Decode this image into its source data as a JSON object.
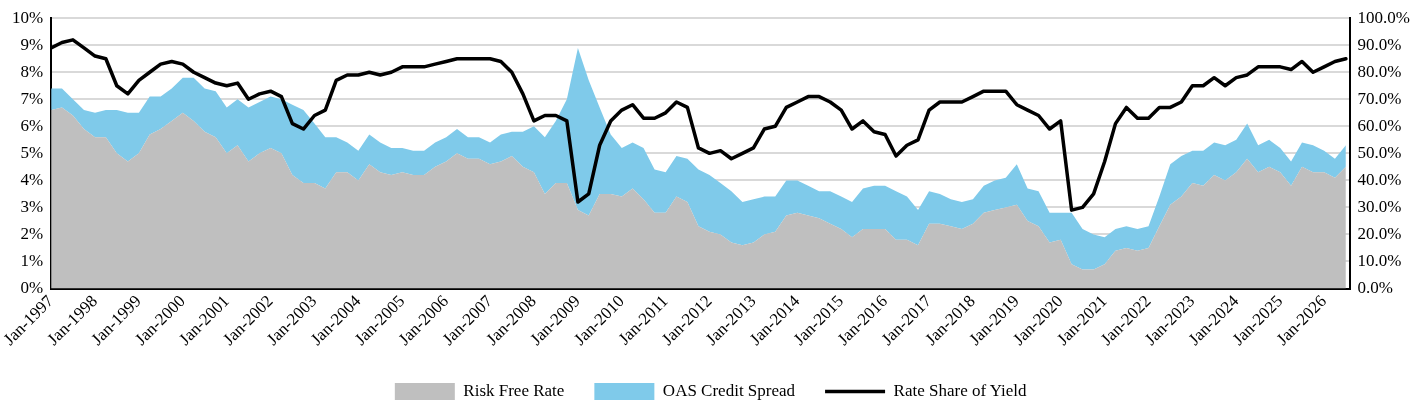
{
  "chart_data": {
    "type": "area",
    "stacked": true,
    "grid": "y",
    "legend": "bottom",
    "marker": "none",
    "x": [
      "1997-01",
      "1997-04",
      "1997-07",
      "1997-10",
      "1998-01",
      "1998-04",
      "1998-07",
      "1998-10",
      "1999-01",
      "1999-04",
      "1999-07",
      "1999-10",
      "2000-01",
      "2000-04",
      "2000-07",
      "2000-10",
      "2001-01",
      "2001-04",
      "2001-07",
      "2001-10",
      "2002-01",
      "2002-04",
      "2002-07",
      "2002-10",
      "2003-01",
      "2003-04",
      "2003-07",
      "2003-10",
      "2004-01",
      "2004-04",
      "2004-07",
      "2004-10",
      "2005-01",
      "2005-04",
      "2005-07",
      "2005-10",
      "2006-01",
      "2006-04",
      "2006-07",
      "2006-10",
      "2007-01",
      "2007-04",
      "2007-07",
      "2007-10",
      "2008-01",
      "2008-04",
      "2008-07",
      "2008-10",
      "2009-01",
      "2009-04",
      "2009-07",
      "2009-10",
      "2010-01",
      "2010-04",
      "2010-07",
      "2010-10",
      "2011-01",
      "2011-04",
      "2011-07",
      "2011-10",
      "2012-01",
      "2012-04",
      "2012-07",
      "2012-10",
      "2013-01",
      "2013-04",
      "2013-07",
      "2013-10",
      "2014-01",
      "2014-04",
      "2014-07",
      "2014-10",
      "2015-01",
      "2015-04",
      "2015-07",
      "2015-10",
      "2016-01",
      "2016-04",
      "2016-07",
      "2016-10",
      "2017-01",
      "2017-04",
      "2017-07",
      "2017-10",
      "2018-01",
      "2018-04",
      "2018-07",
      "2018-10",
      "2019-01",
      "2019-04",
      "2019-07",
      "2019-10",
      "2020-01",
      "2020-04",
      "2020-07",
      "2020-10",
      "2021-01",
      "2021-04",
      "2021-07",
      "2021-10",
      "2022-01",
      "2022-04",
      "2022-07",
      "2022-10",
      "2023-01",
      "2023-04",
      "2023-07",
      "2023-10",
      "2024-01",
      "2024-04",
      "2024-07",
      "2024-10",
      "2025-01",
      "2025-04",
      "2025-07",
      "2025-10",
      "2026-01",
      "2026-04",
      "2026-07"
    ],
    "xlim": [
      "1997-01",
      "2026-08"
    ],
    "xticks": [
      {
        "value": "1997-01",
        "label": "Jan-1997"
      },
      {
        "value": "1998-01",
        "label": "Jan-1998"
      },
      {
        "value": "1999-01",
        "label": "Jan-1999"
      },
      {
        "value": "2000-01",
        "label": "Jan-2000"
      },
      {
        "value": "2001-01",
        "label": "Jan-2001"
      },
      {
        "value": "2002-01",
        "label": "Jan-2002"
      },
      {
        "value": "2003-01",
        "label": "Jan-2003"
      },
      {
        "value": "2004-01",
        "label": "Jan-2004"
      },
      {
        "value": "2005-01",
        "label": "Jan-2005"
      },
      {
        "value": "2006-01",
        "label": "Jan-2006"
      },
      {
        "value": "2007-01",
        "label": "Jan-2007"
      },
      {
        "value": "2008-01",
        "label": "Jan-2008"
      },
      {
        "value": "2009-01",
        "label": "Jan-2009"
      },
      {
        "value": "2010-01",
        "label": "Jan-2010"
      },
      {
        "value": "2011-01",
        "label": "Jan-2011"
      },
      {
        "value": "2012-01",
        "label": "Jan-2012"
      },
      {
        "value": "2013-01",
        "label": "Jan-2013"
      },
      {
        "value": "2014-01",
        "label": "Jan-2014"
      },
      {
        "value": "2015-01",
        "label": "Jan-2015"
      },
      {
        "value": "2016-01",
        "label": "Jan-2016"
      },
      {
        "value": "2017-01",
        "label": "Jan-2017"
      },
      {
        "value": "2018-01",
        "label": "Jan-2018"
      },
      {
        "value": "2019-01",
        "label": "Jan-2019"
      },
      {
        "value": "2020-01",
        "label": "Jan-2020"
      },
      {
        "value": "2021-01",
        "label": "Jan-2021"
      },
      {
        "value": "2022-01",
        "label": "Jan-2022"
      },
      {
        "value": "2023-01",
        "label": "Jan-2023"
      },
      {
        "value": "2024-01",
        "label": "Jan-2024"
      },
      {
        "value": "2025-01",
        "label": "Jan-2025"
      },
      {
        "value": "2026-01",
        "label": "Jan-2026"
      }
    ],
    "ylim": [
      0,
      10
    ],
    "yticks": [
      {
        "value": 0,
        "label": "0%"
      },
      {
        "value": 1,
        "label": "1%"
      },
      {
        "value": 2,
        "label": "2%"
      },
      {
        "value": 3,
        "label": "3%"
      },
      {
        "value": 4,
        "label": "4%"
      },
      {
        "value": 5,
        "label": "5%"
      },
      {
        "value": 6,
        "label": "6%"
      },
      {
        "value": 7,
        "label": "7%"
      },
      {
        "value": 8,
        "label": "8%"
      },
      {
        "value": 9,
        "label": "9%"
      },
      {
        "value": 10,
        "label": "10%"
      }
    ],
    "y2lim": [
      0,
      100
    ],
    "y2ticks": [
      {
        "value": 0,
        "label": "0.0%"
      },
      {
        "value": 10,
        "label": "10.0%"
      },
      {
        "value": 20,
        "label": "20.0%"
      },
      {
        "value": 30,
        "label": "30.0%"
      },
      {
        "value": 40,
        "label": "40.0%"
      },
      {
        "value": 50,
        "label": "50.0%"
      },
      {
        "value": 60,
        "label": "60.0%"
      },
      {
        "value": 70,
        "label": "70.0%"
      },
      {
        "value": 80,
        "label": "80.0%"
      },
      {
        "value": 90,
        "label": "90.0%"
      },
      {
        "value": 100,
        "label": "100.0%"
      }
    ],
    "series": [
      {
        "name": "Risk Free Rate",
        "type": "area",
        "color": "#bfbfbf",
        "values": [
          6.6,
          6.7,
          6.4,
          5.9,
          5.6,
          5.6,
          5.0,
          4.7,
          5.0,
          5.7,
          5.9,
          6.2,
          6.5,
          6.2,
          5.8,
          5.6,
          5.0,
          5.3,
          4.7,
          5.0,
          5.2,
          5.0,
          4.2,
          3.9,
          3.9,
          3.7,
          4.3,
          4.3,
          4.0,
          4.6,
          4.3,
          4.2,
          4.3,
          4.2,
          4.2,
          4.5,
          4.7,
          5.0,
          4.8,
          4.8,
          4.6,
          4.7,
          4.9,
          4.5,
          4.3,
          3.5,
          3.9,
          3.9,
          2.9,
          2.7,
          3.5,
          3.5,
          3.4,
          3.7,
          3.3,
          2.8,
          2.8,
          3.4,
          3.2,
          2.3,
          2.1,
          2.0,
          1.7,
          1.6,
          1.7,
          2.0,
          2.1,
          2.7,
          2.8,
          2.7,
          2.6,
          2.4,
          2.2,
          1.9,
          2.2,
          2.2,
          2.2,
          1.8,
          1.8,
          1.6,
          2.4,
          2.4,
          2.3,
          2.2,
          2.4,
          2.8,
          2.9,
          3.0,
          3.1,
          2.5,
          2.3,
          1.7,
          1.8,
          0.9,
          0.7,
          0.7,
          0.9,
          1.4,
          1.5,
          1.4,
          1.5,
          2.3,
          3.1,
          3.4,
          3.9,
          3.8,
          4.2,
          4.0,
          4.3,
          4.8,
          4.3,
          4.5,
          4.3,
          3.8,
          4.5,
          4.3,
          4.3,
          4.1,
          4.5
        ]
      },
      {
        "name": "OAS Credit Spread",
        "type": "area",
        "color": "#7fcaea",
        "values": [
          0.8,
          0.7,
          0.6,
          0.7,
          0.9,
          1.0,
          1.6,
          1.8,
          1.5,
          1.4,
          1.2,
          1.2,
          1.3,
          1.6,
          1.6,
          1.7,
          1.7,
          1.7,
          2.0,
          1.9,
          1.9,
          2.0,
          2.6,
          2.7,
          2.2,
          1.9,
          1.3,
          1.1,
          1.1,
          1.1,
          1.1,
          1.0,
          0.9,
          0.9,
          0.9,
          0.9,
          0.9,
          0.9,
          0.8,
          0.8,
          0.8,
          1.0,
          0.9,
          1.3,
          1.7,
          2.1,
          2.3,
          3.1,
          6.0,
          5.0,
          3.2,
          2.2,
          1.8,
          1.7,
          1.9,
          1.6,
          1.5,
          1.5,
          1.6,
          2.1,
          2.1,
          1.9,
          1.9,
          1.6,
          1.6,
          1.4,
          1.3,
          1.3,
          1.2,
          1.1,
          1.0,
          1.2,
          1.2,
          1.3,
          1.5,
          1.6,
          1.6,
          1.8,
          1.6,
          1.3,
          1.2,
          1.1,
          1.0,
          1.0,
          0.9,
          1.0,
          1.1,
          1.1,
          1.5,
          1.2,
          1.3,
          1.1,
          1.0,
          1.9,
          1.5,
          1.3,
          1.0,
          0.8,
          0.8,
          0.8,
          0.8,
          1.1,
          1.5,
          1.5,
          1.2,
          1.3,
          1.2,
          1.3,
          1.2,
          1.3,
          1.0,
          1.0,
          0.9,
          0.9,
          0.9,
          1.0,
          0.8,
          0.7,
          0.8
        ]
      },
      {
        "name": "Rate Share of Yield",
        "type": "line",
        "axis": "y2",
        "color": "#000000",
        "values": [
          89,
          91,
          92,
          89,
          86,
          85,
          75,
          72,
          77,
          80,
          83,
          84,
          83,
          80,
          78,
          76,
          75,
          76,
          70,
          72,
          73,
          71,
          61,
          59,
          64,
          66,
          77,
          79,
          79,
          80,
          79,
          80,
          82,
          82,
          82,
          83,
          84,
          85,
          85,
          85,
          85,
          84,
          80,
          72,
          62,
          64,
          64,
          62,
          32,
          35,
          53,
          62,
          66,
          68,
          63,
          63,
          65,
          69,
          67,
          52,
          50,
          51,
          48,
          50,
          52,
          59,
          60,
          67,
          69,
          71,
          71,
          69,
          66,
          59,
          62,
          58,
          57,
          49,
          53,
          55,
          66,
          69,
          69,
          69,
          71,
          73,
          73,
          73,
          68,
          66,
          64,
          59,
          62,
          29,
          30,
          35,
          47,
          61,
          67,
          63,
          63,
          67,
          67,
          69,
          75,
          75,
          78,
          75,
          78,
          79,
          82,
          82,
          82,
          81,
          84,
          80,
          82,
          84,
          85
        ]
      }
    ]
  }
}
